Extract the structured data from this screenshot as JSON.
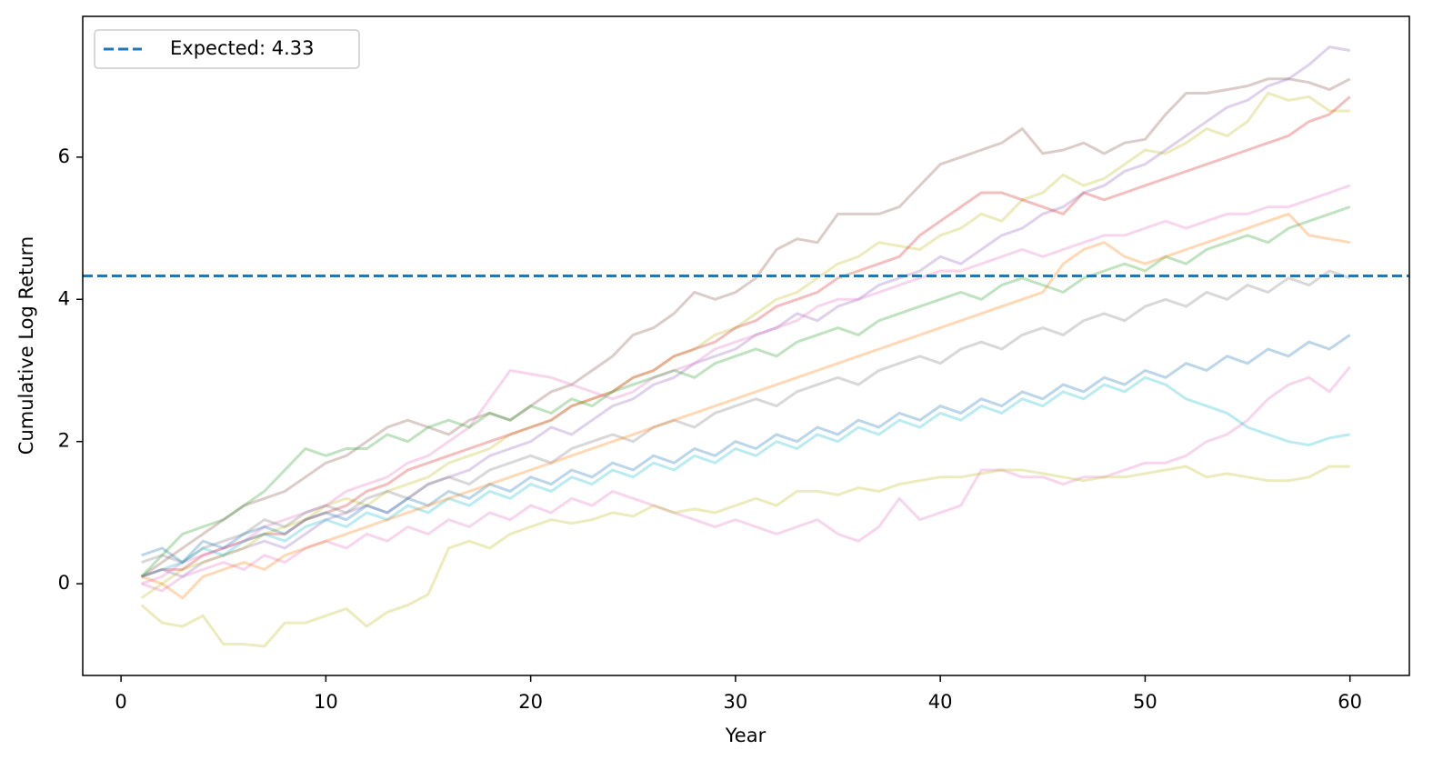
{
  "chart_data": {
    "type": "line",
    "xlabel": "Year",
    "ylabel": "Cumulative Log Return",
    "x": [
      1,
      2,
      3,
      4,
      5,
      6,
      7,
      8,
      9,
      10,
      11,
      12,
      13,
      14,
      15,
      16,
      17,
      18,
      19,
      20,
      21,
      22,
      23,
      24,
      25,
      26,
      27,
      28,
      29,
      30,
      31,
      32,
      33,
      34,
      35,
      36,
      37,
      38,
      39,
      40,
      41,
      42,
      43,
      44,
      45,
      46,
      47,
      48,
      49,
      50,
      51,
      52,
      53,
      54,
      55,
      56,
      57,
      58,
      59,
      60
    ],
    "xlim": [
      -1.87,
      62.9
    ],
    "xticks": [
      0,
      10,
      20,
      30,
      40,
      50,
      60
    ],
    "ylim": [
      -1.29,
      7.98
    ],
    "yticks": [
      0,
      2,
      4,
      6
    ],
    "alpha": 0.3,
    "hline": {
      "value": 4.33,
      "label": "Expected: 4.33",
      "color": "#1f77b4"
    },
    "legend": "upper left",
    "series": [
      {
        "color": "#9467bd",
        "values": [
          0.1,
          0.2,
          0.1,
          0.3,
          0.4,
          0.5,
          0.6,
          0.5,
          0.7,
          0.9,
          1.0,
          1.1,
          1.0,
          1.2,
          1.4,
          1.5,
          1.6,
          1.8,
          1.9,
          2.0,
          2.2,
          2.1,
          2.3,
          2.5,
          2.6,
          2.8,
          2.9,
          3.1,
          3.2,
          3.3,
          3.5,
          3.6,
          3.8,
          3.7,
          3.9,
          4.0,
          4.2,
          4.3,
          4.4,
          4.6,
          4.5,
          4.7,
          4.9,
          5.0,
          5.2,
          5.3,
          5.5,
          5.6,
          5.8,
          5.9,
          6.1,
          6.3,
          6.5,
          6.7,
          6.8,
          7.0,
          7.1,
          7.3,
          7.55,
          7.5
        ]
      },
      {
        "color": "#8c564b",
        "values": [
          0.1,
          0.3,
          0.5,
          0.7,
          0.9,
          1.1,
          1.2,
          1.3,
          1.5,
          1.7,
          1.8,
          2.0,
          2.2,
          2.3,
          2.2,
          2.1,
          2.3,
          2.4,
          2.3,
          2.5,
          2.7,
          2.8,
          3.0,
          3.2,
          3.5,
          3.6,
          3.8,
          4.1,
          4.0,
          4.1,
          4.3,
          4.7,
          4.85,
          4.8,
          5.2,
          5.2,
          5.2,
          5.3,
          5.6,
          5.9,
          6.0,
          6.1,
          6.2,
          6.4,
          6.05,
          6.1,
          6.2,
          6.05,
          6.2,
          6.25,
          6.6,
          6.9,
          6.9,
          6.95,
          7.0,
          7.1,
          7.1,
          7.05,
          6.95,
          7.1
        ]
      },
      {
        "color": "#bcbd22",
        "values": [
          -0.2,
          0.0,
          0.2,
          0.3,
          0.4,
          0.5,
          0.7,
          0.8,
          0.9,
          1.1,
          1.2,
          1.1,
          1.3,
          1.4,
          1.5,
          1.7,
          1.8,
          1.9,
          2.1,
          2.2,
          2.3,
          2.5,
          2.6,
          2.7,
          2.9,
          3.0,
          3.2,
          3.3,
          3.5,
          3.6,
          3.8,
          4.0,
          4.1,
          4.3,
          4.5,
          4.6,
          4.8,
          4.75,
          4.7,
          4.9,
          5.0,
          5.2,
          5.1,
          5.4,
          5.5,
          5.75,
          5.6,
          5.7,
          5.9,
          6.1,
          6.05,
          6.2,
          6.4,
          6.3,
          6.5,
          6.9,
          6.8,
          6.85,
          6.65,
          6.65
        ]
      },
      {
        "color": "#d62728",
        "values": [
          0.1,
          0.2,
          0.2,
          0.4,
          0.5,
          0.6,
          0.7,
          0.7,
          0.9,
          1.0,
          1.1,
          1.3,
          1.4,
          1.6,
          1.7,
          1.8,
          1.9,
          2.0,
          2.1,
          2.2,
          2.3,
          2.5,
          2.6,
          2.7,
          2.9,
          3.0,
          3.2,
          3.3,
          3.4,
          3.6,
          3.7,
          3.9,
          4.0,
          4.1,
          4.3,
          4.4,
          4.5,
          4.6,
          4.9,
          5.1,
          5.3,
          5.5,
          5.5,
          5.4,
          5.3,
          5.2,
          5.5,
          5.4,
          5.5,
          5.6,
          5.7,
          5.8,
          5.9,
          6.0,
          6.1,
          6.2,
          6.3,
          6.5,
          6.6,
          6.85
        ]
      },
      {
        "color": "#e377c2",
        "values": [
          0.0,
          0.1,
          0.3,
          0.4,
          0.5,
          0.6,
          0.8,
          0.9,
          1.0,
          1.1,
          1.3,
          1.4,
          1.5,
          1.7,
          1.8,
          2.0,
          2.2,
          2.6,
          3.0,
          2.95,
          2.9,
          2.8,
          2.7,
          2.6,
          2.7,
          2.9,
          3.0,
          3.1,
          3.3,
          3.4,
          3.5,
          3.6,
          3.7,
          3.9,
          4.0,
          4.0,
          4.1,
          4.2,
          4.3,
          4.4,
          4.4,
          4.5,
          4.6,
          4.7,
          4.6,
          4.7,
          4.8,
          4.9,
          4.9,
          5.0,
          5.1,
          5.0,
          5.1,
          5.2,
          5.2,
          5.3,
          5.3,
          5.4,
          5.5,
          5.6
        ]
      },
      {
        "color": "#2ca02c",
        "values": [
          0.1,
          0.4,
          0.7,
          0.8,
          0.9,
          1.1,
          1.3,
          1.6,
          1.9,
          1.8,
          1.9,
          1.9,
          2.1,
          2.0,
          2.2,
          2.3,
          2.2,
          2.4,
          2.3,
          2.5,
          2.4,
          2.6,
          2.5,
          2.7,
          2.8,
          2.9,
          3.0,
          2.9,
          3.1,
          3.2,
          3.3,
          3.2,
          3.4,
          3.5,
          3.6,
          3.5,
          3.7,
          3.8,
          3.9,
          4.0,
          4.1,
          4.0,
          4.2,
          4.3,
          4.2,
          4.1,
          4.3,
          4.4,
          4.5,
          4.4,
          4.6,
          4.5,
          4.7,
          4.8,
          4.9,
          4.8,
          5.0,
          5.1,
          5.2,
          5.3
        ]
      },
      {
        "color": "#7f7f7f",
        "values": [
          0.3,
          0.4,
          0.3,
          0.5,
          0.6,
          0.7,
          0.9,
          0.8,
          1.0,
          1.1,
          1.0,
          1.2,
          1.3,
          1.2,
          1.4,
          1.5,
          1.4,
          1.6,
          1.7,
          1.8,
          1.7,
          1.9,
          2.0,
          2.1,
          2.0,
          2.2,
          2.3,
          2.2,
          2.4,
          2.5,
          2.6,
          2.5,
          2.7,
          2.8,
          2.9,
          2.8,
          3.0,
          3.1,
          3.2,
          3.1,
          3.3,
          3.4,
          3.3,
          3.5,
          3.6,
          3.5,
          3.7,
          3.8,
          3.7,
          3.9,
          4.0,
          3.9,
          4.1,
          4.0,
          4.2,
          4.1,
          4.3,
          4.2,
          4.4,
          4.3
        ]
      },
      {
        "color": "#1f77b4",
        "values": [
          0.4,
          0.5,
          0.3,
          0.6,
          0.5,
          0.7,
          0.8,
          0.7,
          0.9,
          1.0,
          0.9,
          1.1,
          1.0,
          1.2,
          1.1,
          1.3,
          1.2,
          1.4,
          1.3,
          1.5,
          1.4,
          1.6,
          1.5,
          1.7,
          1.6,
          1.8,
          1.7,
          1.9,
          1.8,
          2.0,
          1.9,
          2.1,
          2.0,
          2.2,
          2.1,
          2.3,
          2.2,
          2.4,
          2.3,
          2.5,
          2.4,
          2.6,
          2.5,
          2.7,
          2.6,
          2.8,
          2.7,
          2.9,
          2.8,
          3.0,
          2.9,
          3.1,
          3.0,
          3.2,
          3.1,
          3.3,
          3.2,
          3.4,
          3.3,
          3.5
        ]
      },
      {
        "color": "#e377c2",
        "values": [
          0.0,
          -0.1,
          0.1,
          0.2,
          0.3,
          0.2,
          0.4,
          0.3,
          0.5,
          0.6,
          0.5,
          0.7,
          0.6,
          0.8,
          0.7,
          0.9,
          0.8,
          1.0,
          0.9,
          1.1,
          1.0,
          1.2,
          1.1,
          1.3,
          1.2,
          1.1,
          1.0,
          0.9,
          0.8,
          0.9,
          0.8,
          0.7,
          0.8,
          0.9,
          0.7,
          0.6,
          0.8,
          1.2,
          0.9,
          1.0,
          1.1,
          1.6,
          1.6,
          1.5,
          1.5,
          1.4,
          1.5,
          1.5,
          1.6,
          1.7,
          1.7,
          1.8,
          2.0,
          2.1,
          2.3,
          2.6,
          2.8,
          2.9,
          2.7,
          3.05
        ]
      },
      {
        "color": "#17becf",
        "values": [
          0.1,
          0.2,
          0.3,
          0.5,
          0.4,
          0.6,
          0.7,
          0.6,
          0.8,
          0.9,
          0.8,
          1.0,
          0.9,
          1.1,
          1.0,
          1.2,
          1.1,
          1.3,
          1.2,
          1.4,
          1.3,
          1.5,
          1.4,
          1.6,
          1.5,
          1.7,
          1.6,
          1.8,
          1.7,
          1.9,
          1.8,
          2.0,
          1.9,
          2.1,
          2.0,
          2.2,
          2.1,
          2.3,
          2.2,
          2.4,
          2.3,
          2.5,
          2.4,
          2.6,
          2.5,
          2.7,
          2.6,
          2.8,
          2.7,
          2.9,
          2.8,
          2.6,
          2.5,
          2.4,
          2.2,
          2.1,
          2.0,
          1.95,
          2.05,
          2.1
        ]
      },
      {
        "color": "#bcbd22",
        "values": [
          -0.3,
          -0.55,
          -0.6,
          -0.45,
          -0.85,
          -0.85,
          -0.88,
          -0.55,
          -0.55,
          -0.45,
          -0.35,
          -0.6,
          -0.4,
          -0.3,
          -0.15,
          0.5,
          0.6,
          0.5,
          0.7,
          0.8,
          0.9,
          0.85,
          0.9,
          1.0,
          0.95,
          1.1,
          1.0,
          1.05,
          1.0,
          1.1,
          1.2,
          1.1,
          1.3,
          1.3,
          1.25,
          1.35,
          1.3,
          1.4,
          1.45,
          1.5,
          1.5,
          1.55,
          1.6,
          1.6,
          1.55,
          1.5,
          1.45,
          1.5,
          1.5,
          1.55,
          1.6,
          1.65,
          1.5,
          1.55,
          1.5,
          1.45,
          1.45,
          1.5,
          1.65,
          1.65
        ]
      },
      {
        "color": "#ff7f0e",
        "values": [
          0.1,
          0.0,
          -0.2,
          0.1,
          0.2,
          0.3,
          0.2,
          0.4,
          0.5,
          0.6,
          0.7,
          0.8,
          0.9,
          1.0,
          1.1,
          1.2,
          1.3,
          1.4,
          1.5,
          1.6,
          1.7,
          1.8,
          1.9,
          2.0,
          2.1,
          2.2,
          2.3,
          2.4,
          2.5,
          2.6,
          2.7,
          2.8,
          2.9,
          3.0,
          3.1,
          3.2,
          3.3,
          3.4,
          3.5,
          3.6,
          3.7,
          3.8,
          3.9,
          4.0,
          4.1,
          4.5,
          4.7,
          4.8,
          4.6,
          4.5,
          4.6,
          4.7,
          4.8,
          4.9,
          5.0,
          5.1,
          5.2,
          4.9,
          4.85,
          4.8
        ]
      }
    ]
  }
}
